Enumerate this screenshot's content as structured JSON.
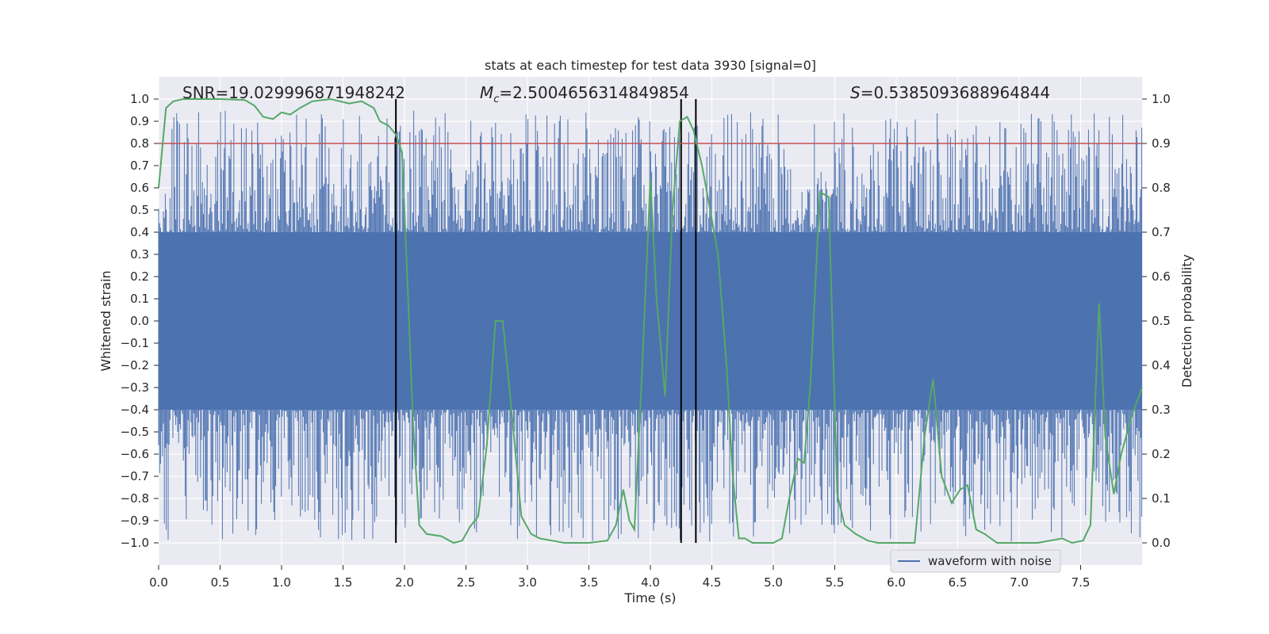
{
  "chart_data": {
    "type": "line",
    "title": "stats at each timestep for test data 3930 [signal=0]",
    "xlabel": "Time (s)",
    "ylabel_left": "Whitened strain",
    "ylabel_right": "Detection probability",
    "xlim": [
      0,
      8
    ],
    "ylim_left": [
      -1.1,
      1.1
    ],
    "ylim_right": [
      -0.05,
      1.05
    ],
    "x_ticks": [
      0.0,
      0.5,
      1.0,
      1.5,
      2.0,
      2.5,
      3.0,
      3.5,
      4.0,
      4.5,
      5.0,
      5.5,
      6.0,
      6.5,
      7.0,
      7.5
    ],
    "x_tick_labels": [
      "0.0",
      "0.5",
      "1.0",
      "1.5",
      "2.0",
      "2.5",
      "3.0",
      "3.5",
      "4.0",
      "4.5",
      "5.0",
      "5.5",
      "6.0",
      "6.5",
      "7.0",
      "7.5"
    ],
    "y_left_ticks": [
      -1.0,
      -0.9,
      -0.8,
      -0.7,
      -0.6,
      -0.5,
      -0.4,
      -0.3,
      -0.2,
      -0.1,
      0.0,
      0.1,
      0.2,
      0.3,
      0.4,
      0.5,
      0.6,
      0.7,
      0.8,
      0.9,
      1.0
    ],
    "y_left_tick_labels": [
      "−1.0",
      "−0.9",
      "−0.8",
      "−0.7",
      "−0.6",
      "−0.5",
      "−0.4",
      "−0.3",
      "−0.2",
      "−0.1",
      "0.0",
      "0.1",
      "0.2",
      "0.3",
      "0.4",
      "0.5",
      "0.6",
      "0.7",
      "0.8",
      "0.9",
      "1.0"
    ],
    "y_right_ticks": [
      0.0,
      0.1,
      0.2,
      0.3,
      0.4,
      0.5,
      0.6,
      0.7,
      0.8,
      0.9,
      1.0
    ],
    "y_right_tick_labels": [
      "0.0",
      "0.1",
      "0.2",
      "0.3",
      "0.4",
      "0.5",
      "0.6",
      "0.7",
      "0.8",
      "0.9",
      "1.0"
    ],
    "annotations": {
      "snr": "SNR=19.029996871948242",
      "mc_symbol": "M",
      "mc_sub": "c",
      "mc_value": "=2.5004656314849854",
      "s_symbol": "S",
      "s_value": "=0.5385093688964844"
    },
    "threshold": {
      "value": 0.9,
      "axis": "right",
      "color": "#c44e52"
    },
    "vertical_markers": [
      {
        "x": 1.93,
        "y_from": -1.0,
        "y_to": 1.0
      },
      {
        "x": 4.25,
        "y_from": -1.0,
        "y_to": 1.0
      },
      {
        "x": 4.37,
        "y_from": -1.0,
        "y_to": 1.0
      }
    ],
    "series": [
      {
        "name": "waveform with noise",
        "axis": "left",
        "color": "#4c72b0",
        "kind": "dense-noise",
        "core_amplitude": 0.4,
        "max_spike": 0.95,
        "min_spike": -1.0
      },
      {
        "name": "detection probability",
        "axis": "right",
        "color": "#55a868",
        "x": [
          0.0,
          0.06,
          0.12,
          0.2,
          0.3,
          0.5,
          0.7,
          0.78,
          0.85,
          0.93,
          1.0,
          1.07,
          1.15,
          1.25,
          1.4,
          1.55,
          1.65,
          1.75,
          1.8,
          1.87,
          1.93,
          1.98,
          2.03,
          2.07,
          2.12,
          2.18,
          2.3,
          2.4,
          2.47,
          2.53,
          2.6,
          2.67,
          2.74,
          2.8,
          2.87,
          2.95,
          3.03,
          3.1,
          3.2,
          3.3,
          3.5,
          3.65,
          3.72,
          3.78,
          3.83,
          3.87,
          3.93,
          4.0,
          4.05,
          4.12,
          4.18,
          4.24,
          4.3,
          4.35,
          4.42,
          4.48,
          4.55,
          4.62,
          4.67,
          4.72,
          4.77,
          4.83,
          5.0,
          5.07,
          5.13,
          5.2,
          5.25,
          5.3,
          5.38,
          5.45,
          5.52,
          5.58,
          5.67,
          5.77,
          5.85,
          6.0,
          6.1,
          6.15,
          6.23,
          6.3,
          6.37,
          6.45,
          6.52,
          6.58,
          6.65,
          6.72,
          6.82,
          6.93,
          7.05,
          7.15,
          7.25,
          7.35,
          7.43,
          7.52,
          7.58,
          7.65,
          7.7,
          7.77,
          7.83,
          7.92,
          8.0
        ],
        "values": [
          0.8,
          0.98,
          0.995,
          1.0,
          1.0,
          1.0,
          0.998,
          0.985,
          0.96,
          0.955,
          0.97,
          0.965,
          0.98,
          0.995,
          1.0,
          0.99,
          0.995,
          0.98,
          0.95,
          0.94,
          0.92,
          0.88,
          0.55,
          0.27,
          0.04,
          0.02,
          0.015,
          0.0,
          0.005,
          0.035,
          0.06,
          0.22,
          0.5,
          0.5,
          0.3,
          0.06,
          0.02,
          0.01,
          0.005,
          0.0,
          0.0,
          0.005,
          0.04,
          0.12,
          0.05,
          0.03,
          0.37,
          0.82,
          0.55,
          0.33,
          0.75,
          0.95,
          0.96,
          0.93,
          0.85,
          0.76,
          0.65,
          0.4,
          0.15,
          0.01,
          0.01,
          0.0,
          0.0,
          0.01,
          0.1,
          0.19,
          0.18,
          0.35,
          0.79,
          0.78,
          0.11,
          0.04,
          0.02,
          0.005,
          0.0,
          0.0,
          0.0,
          0.0,
          0.24,
          0.37,
          0.15,
          0.09,
          0.12,
          0.13,
          0.03,
          0.02,
          0.0,
          0.0,
          0.0,
          0.0,
          0.005,
          0.01,
          0.0,
          0.005,
          0.04,
          0.54,
          0.24,
          0.11,
          0.2,
          0.29,
          0.35
        ]
      }
    ],
    "legend": {
      "position": "lower-right",
      "entries": [
        "waveform with noise"
      ]
    }
  }
}
